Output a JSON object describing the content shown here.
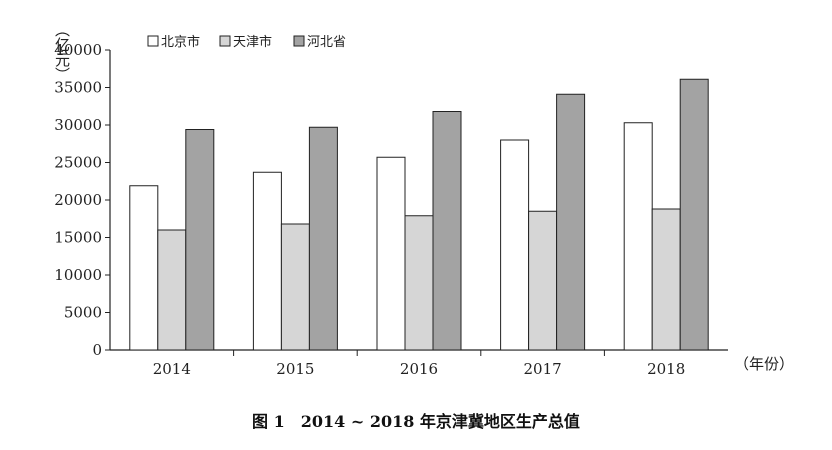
{
  "chart_data": {
    "type": "bar",
    "categories": [
      "2014",
      "2015",
      "2016",
      "2017",
      "2018"
    ],
    "series": [
      {
        "name": "北京市",
        "values": [
          21900,
          23700,
          25700,
          28000,
          30300
        ],
        "color": "#ffffff"
      },
      {
        "name": "天津市",
        "values": [
          16000,
          16800,
          17900,
          18500,
          18800
        ],
        "color": "#d6d6d6"
      },
      {
        "name": "河北省",
        "values": [
          29400,
          29700,
          31800,
          34100,
          36100
        ],
        "color": "#a3a3a3"
      }
    ],
    "ylabel": "（亿元）",
    "xlabel": "（年份）",
    "ylim": [
      0,
      40000
    ],
    "yticks": [
      0,
      5000,
      10000,
      15000,
      20000,
      25000,
      30000,
      35000,
      40000
    ],
    "title": "图 1　2014 ~ 2018 年京津冀地区生产总值",
    "legend": "top-left",
    "grid": false
  }
}
